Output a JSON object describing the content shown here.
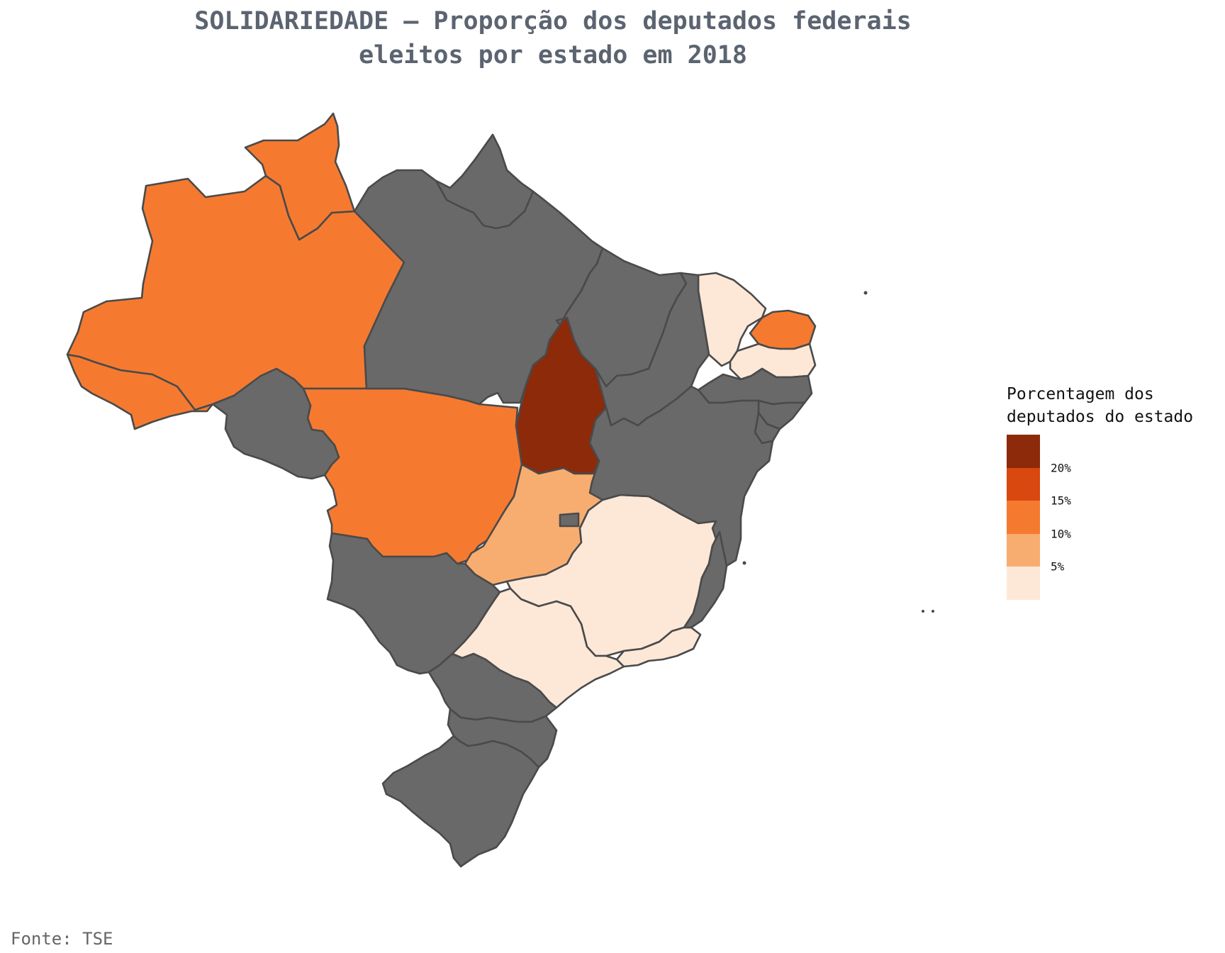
{
  "title_line1": "SOLIDARIEDADE – Proporção dos deputados federais",
  "title_line2": "eleitos por estado em 2018",
  "source": "Fonte: TSE",
  "legend": {
    "title_line1": "Porcentagem dos",
    "title_line2": "deputados do estado",
    "ticks": [
      "20%",
      "15%",
      "10%",
      "5%"
    ],
    "colors": [
      "#8c2a0a",
      "#d9480f",
      "#f57a30",
      "#f8ad70",
      "#fde8d8"
    ]
  },
  "colors": {
    "no_data": "#696969",
    "border": "#4a4a4a",
    "title": "#5b6470"
  },
  "map_data": {
    "type": "choropleth",
    "region": "Brasil",
    "year": 2018,
    "states": [
      {
        "uf": "AC",
        "bin": "10-15%"
      },
      {
        "uf": "AM",
        "bin": "10-15%"
      },
      {
        "uf": "RR",
        "bin": "10-15%"
      },
      {
        "uf": "MT",
        "bin": "10-15%"
      },
      {
        "uf": "RN",
        "bin": "10-15%"
      },
      {
        "uf": "TO",
        "bin": ">20%"
      },
      {
        "uf": "GO",
        "bin": "5-10%"
      },
      {
        "uf": "CE",
        "bin": "0-5%"
      },
      {
        "uf": "PB",
        "bin": "0-5%"
      },
      {
        "uf": "MG",
        "bin": "0-5%"
      },
      {
        "uf": "SP",
        "bin": "0-5%"
      },
      {
        "uf": "RJ",
        "bin": "0-5%"
      },
      {
        "uf": "PA",
        "bin": "no data"
      },
      {
        "uf": "AP",
        "bin": "no data"
      },
      {
        "uf": "MA",
        "bin": "no data"
      },
      {
        "uf": "PI",
        "bin": "no data"
      },
      {
        "uf": "PE",
        "bin": "no data"
      },
      {
        "uf": "AL",
        "bin": "no data"
      },
      {
        "uf": "SE",
        "bin": "no data"
      },
      {
        "uf": "BA",
        "bin": "no data"
      },
      {
        "uf": "ES",
        "bin": "no data"
      },
      {
        "uf": "RO",
        "bin": "no data"
      },
      {
        "uf": "MS",
        "bin": "no data"
      },
      {
        "uf": "PR",
        "bin": "no data"
      },
      {
        "uf": "SC",
        "bin": "no data"
      },
      {
        "uf": "RS",
        "bin": "no data"
      },
      {
        "uf": "DF",
        "bin": "no data"
      }
    ]
  }
}
